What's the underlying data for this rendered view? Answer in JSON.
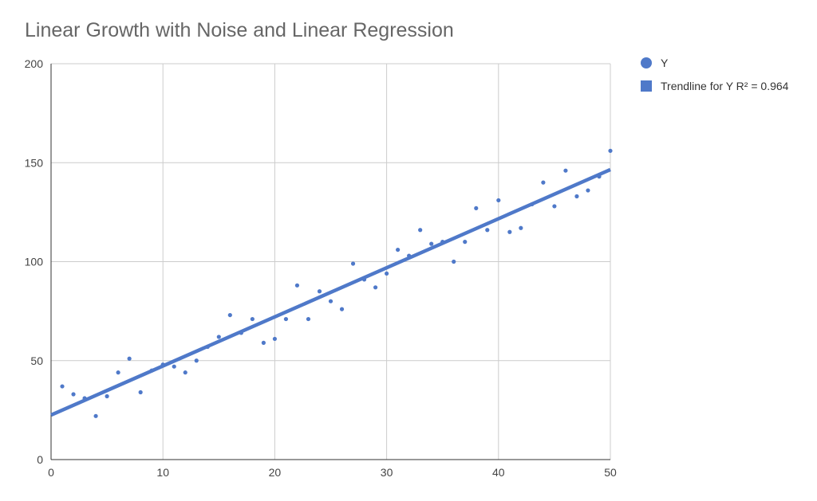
{
  "chart_data": {
    "type": "scatter",
    "title": "Linear Growth with Noise and Linear Regression",
    "xlabel": "",
    "ylabel": "",
    "xlim": [
      0,
      50
    ],
    "ylim": [
      0,
      200
    ],
    "x_ticks": [
      "0",
      "10",
      "20",
      "30",
      "40",
      "50"
    ],
    "y_ticks": [
      "0",
      "50",
      "100",
      "150",
      "200"
    ],
    "grid": true,
    "legend_position": "top-right",
    "series": [
      {
        "name": "Y",
        "color": "#4f79c9",
        "x": [
          1,
          2,
          3,
          4,
          5,
          6,
          7,
          8,
          9,
          10,
          11,
          12,
          13,
          14,
          15,
          16,
          17,
          18,
          19,
          20,
          21,
          22,
          23,
          24,
          25,
          26,
          27,
          28,
          29,
          30,
          31,
          32,
          33,
          34,
          35,
          36,
          37,
          38,
          39,
          40,
          41,
          42,
          43,
          44,
          45,
          46,
          47,
          48,
          49,
          50
        ],
        "y": [
          37,
          33,
          31,
          22,
          32,
          44,
          51,
          34,
          45,
          48,
          47,
          44,
          50,
          57,
          62,
          73,
          64,
          71,
          59,
          61,
          71,
          88,
          71,
          85,
          80,
          76,
          99,
          91,
          87,
          94,
          106,
          103,
          116,
          109,
          110,
          100,
          110,
          127,
          116,
          131,
          115,
          117,
          129,
          140,
          128,
          146,
          133,
          136,
          143,
          156
        ]
      }
    ],
    "trendline": {
      "name": "Trendline for Y R² = 0.964",
      "color": "#4f79c9",
      "intercept": 22.5,
      "slope": 2.48,
      "x_range": [
        0,
        50
      ]
    }
  }
}
